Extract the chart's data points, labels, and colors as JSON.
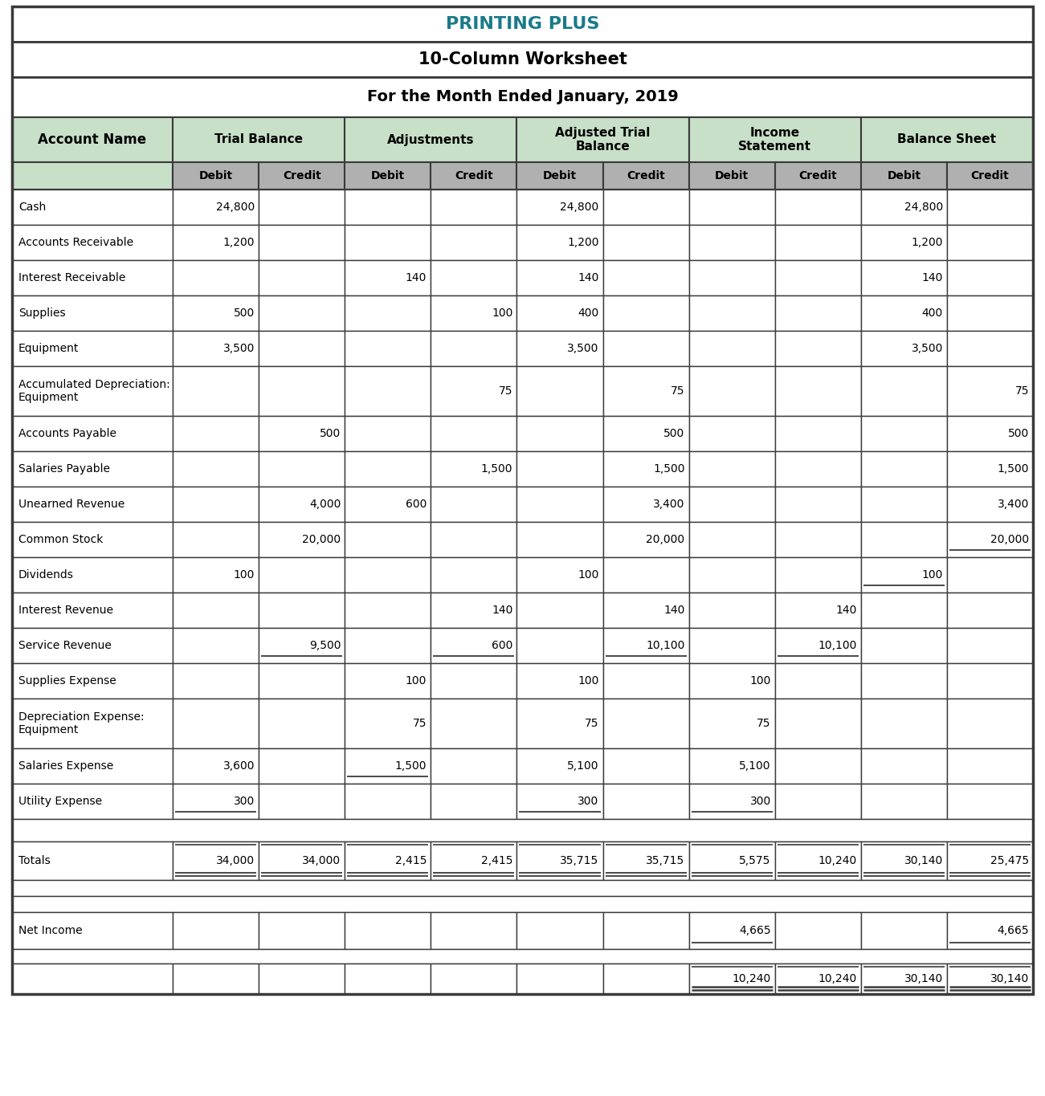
{
  "title1": "PRINTING PLUS",
  "title2": "10-Column Worksheet",
  "title3": "For the Month Ended January, 2019",
  "title1_color": "#1a7a8a",
  "col_headers": [
    "Account Name",
    "Trial Balance",
    "Adjustments",
    "Adjusted Trial\nBalance",
    "Income\nStatement",
    "Balance Sheet"
  ],
  "sub_headers": [
    "Debit",
    "Credit"
  ],
  "header_bg": "#c8dfc8",
  "subheader_bg": "#b0b0b0",
  "rows": [
    {
      "name": "Cash",
      "tb_d": "24,800",
      "tb_c": "",
      "adj_d": "",
      "adj_c": "",
      "atb_d": "24,800",
      "atb_c": "",
      "is_d": "",
      "is_c": "",
      "bs_d": "24,800",
      "bs_c": "",
      "tall": false
    },
    {
      "name": "Accounts Receivable",
      "tb_d": "1,200",
      "tb_c": "",
      "adj_d": "",
      "adj_c": "",
      "atb_d": "1,200",
      "atb_c": "",
      "is_d": "",
      "is_c": "",
      "bs_d": "1,200",
      "bs_c": "",
      "tall": false
    },
    {
      "name": "Interest Receivable",
      "tb_d": "",
      "tb_c": "",
      "adj_d": "140",
      "adj_c": "",
      "atb_d": "140",
      "atb_c": "",
      "is_d": "",
      "is_c": "",
      "bs_d": "140",
      "bs_c": "",
      "tall": false
    },
    {
      "name": "Supplies",
      "tb_d": "500",
      "tb_c": "",
      "adj_d": "",
      "adj_c": "100",
      "atb_d": "400",
      "atb_c": "",
      "is_d": "",
      "is_c": "",
      "bs_d": "400",
      "bs_c": "",
      "tall": false
    },
    {
      "name": "Equipment",
      "tb_d": "3,500",
      "tb_c": "",
      "adj_d": "",
      "adj_c": "",
      "atb_d": "3,500",
      "atb_c": "",
      "is_d": "",
      "is_c": "",
      "bs_d": "3,500",
      "bs_c": "",
      "tall": false
    },
    {
      "name": "Accumulated Depreciation:\nEquipment",
      "tb_d": "",
      "tb_c": "",
      "adj_d": "",
      "adj_c": "75",
      "atb_d": "",
      "atb_c": "75",
      "is_d": "",
      "is_c": "",
      "bs_d": "",
      "bs_c": "75",
      "tall": true
    },
    {
      "name": "Accounts Payable",
      "tb_d": "",
      "tb_c": "500",
      "adj_d": "",
      "adj_c": "",
      "atb_d": "",
      "atb_c": "500",
      "is_d": "",
      "is_c": "",
      "bs_d": "",
      "bs_c": "500",
      "tall": false
    },
    {
      "name": "Salaries Payable",
      "tb_d": "",
      "tb_c": "",
      "adj_d": "",
      "adj_c": "1,500",
      "atb_d": "",
      "atb_c": "1,500",
      "is_d": "",
      "is_c": "",
      "bs_d": "",
      "bs_c": "1,500",
      "tall": false
    },
    {
      "name": "Unearned Revenue",
      "tb_d": "",
      "tb_c": "4,000",
      "adj_d": "600",
      "adj_c": "",
      "atb_d": "",
      "atb_c": "3,400",
      "is_d": "",
      "is_c": "",
      "bs_d": "",
      "bs_c": "3,400",
      "tall": false
    },
    {
      "name": "Common Stock",
      "tb_d": "",
      "tb_c": "20,000",
      "adj_d": "",
      "adj_c": "",
      "atb_d": "",
      "atb_c": "20,000",
      "is_d": "",
      "is_c": "",
      "bs_d": "",
      "bs_c": "20,000",
      "tall": false,
      "ul": [
        "bs_c"
      ]
    },
    {
      "name": "Dividends",
      "tb_d": "100",
      "tb_c": "",
      "adj_d": "",
      "adj_c": "",
      "atb_d": "100",
      "atb_c": "",
      "is_d": "",
      "is_c": "",
      "bs_d": "100",
      "bs_c": "",
      "tall": false,
      "ul": [
        "bs_d"
      ]
    },
    {
      "name": "Interest Revenue",
      "tb_d": "",
      "tb_c": "",
      "adj_d": "",
      "adj_c": "140",
      "atb_d": "",
      "atb_c": "140",
      "is_d": "",
      "is_c": "140",
      "bs_d": "",
      "bs_c": "",
      "tall": false
    },
    {
      "name": "Service Revenue",
      "tb_d": "",
      "tb_c": "9,500",
      "adj_d": "",
      "adj_c": "600",
      "atb_d": "",
      "atb_c": "10,100",
      "is_d": "",
      "is_c": "10,100",
      "bs_d": "",
      "bs_c": "",
      "tall": false,
      "ul": [
        "tb_c",
        "adj_c",
        "atb_c",
        "is_c"
      ]
    },
    {
      "name": "Supplies Expense",
      "tb_d": "",
      "tb_c": "",
      "adj_d": "100",
      "adj_c": "",
      "atb_d": "100",
      "atb_c": "",
      "is_d": "100",
      "is_c": "",
      "bs_d": "",
      "bs_c": "",
      "tall": false
    },
    {
      "name": "Depreciation Expense:\nEquipment",
      "tb_d": "",
      "tb_c": "",
      "adj_d": "75",
      "adj_c": "",
      "atb_d": "75",
      "atb_c": "",
      "is_d": "75",
      "is_c": "",
      "bs_d": "",
      "bs_c": "",
      "tall": true
    },
    {
      "name": "Salaries Expense",
      "tb_d": "3,600",
      "tb_c": "",
      "adj_d": "1,500",
      "adj_c": "",
      "atb_d": "5,100",
      "atb_c": "",
      "is_d": "5,100",
      "is_c": "",
      "bs_d": "",
      "bs_c": "",
      "tall": false,
      "ul": [
        "adj_d"
      ]
    },
    {
      "name": "Utility Expense",
      "tb_d": "300",
      "tb_c": "",
      "adj_d": "",
      "adj_c": "",
      "atb_d": "300",
      "atb_c": "",
      "is_d": "300",
      "is_c": "",
      "bs_d": "",
      "bs_c": "",
      "tall": false,
      "ul": [
        "tb_d",
        "atb_d",
        "is_d"
      ]
    }
  ],
  "totals_row": {
    "name": "Totals",
    "tb_d": "34,000",
    "tb_c": "34,000",
    "adj_d": "2,415",
    "adj_c": "2,415",
    "atb_d": "35,715",
    "atb_c": "35,715",
    "is_d": "5,575",
    "is_c": "10,240",
    "bs_d": "30,140",
    "bs_c": "25,475"
  },
  "net_income_row": {
    "name": "Net Income",
    "is_d": "4,665",
    "bs_c": "4,665"
  },
  "final_row": {
    "is_d": "10,240",
    "is_c": "10,240",
    "bs_d": "30,140",
    "bs_c": "30,140"
  },
  "col_keys": [
    "tb_d",
    "tb_c",
    "adj_d",
    "adj_c",
    "atb_d",
    "atb_c",
    "is_d",
    "is_c",
    "bs_d",
    "bs_c"
  ],
  "bg_color": "#ffffff",
  "border_color": "#3a3a3a"
}
